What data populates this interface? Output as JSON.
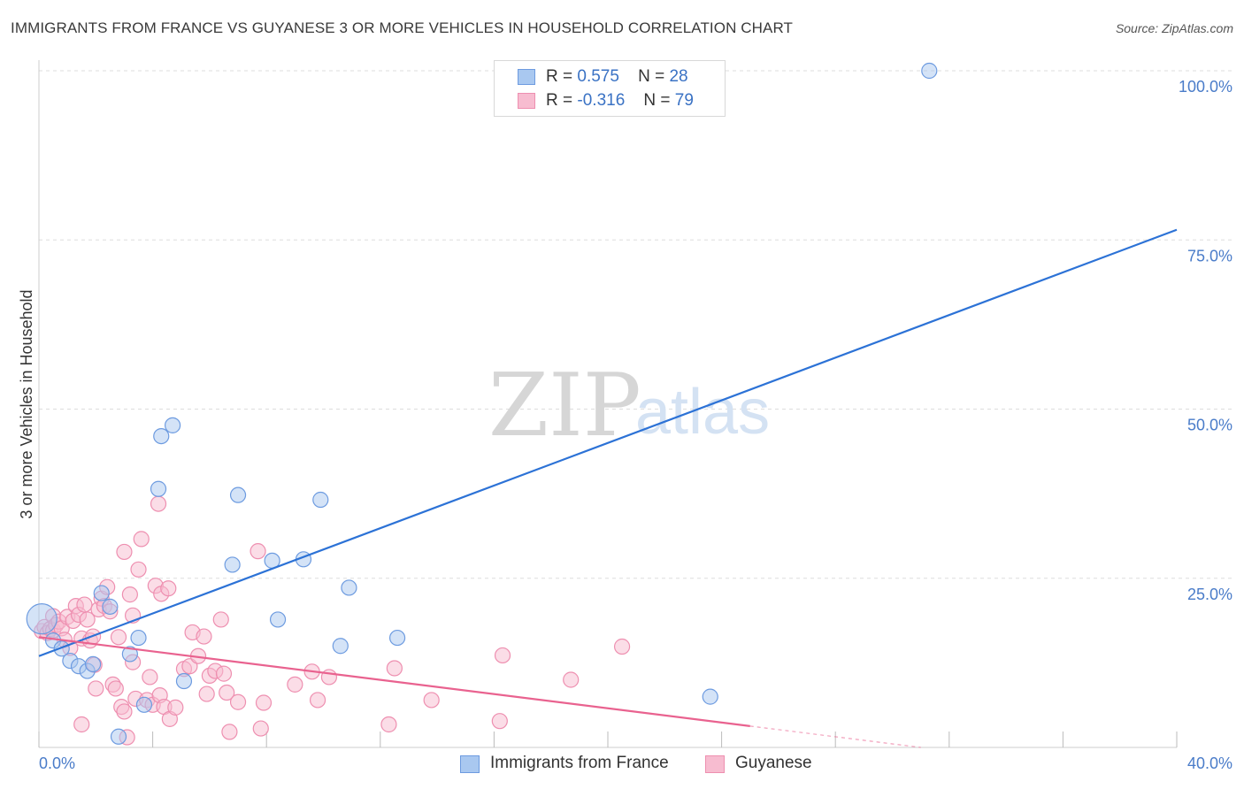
{
  "title": "IMMIGRANTS FROM FRANCE VS GUYANESE 3 OR MORE VEHICLES IN HOUSEHOLD CORRELATION CHART",
  "source": "Source: ZipAtlas.com",
  "watermark": {
    "zip": "ZIP",
    "atlas": "atlas"
  },
  "colors": {
    "france_fill": "#a9c8f0",
    "france_stroke": "#6d9be0",
    "france_line": "#2c72d6",
    "guyanese_fill": "#f7bcd0",
    "guyanese_stroke": "#ee8fb0",
    "guyanese_line": "#e9628f",
    "grid": "#dddddd",
    "tick_text": "#4a7cc9"
  },
  "legend": {
    "r_label": "R =",
    "n_label": "N =",
    "france": {
      "r": "0.575",
      "n": "28"
    },
    "guyanese": {
      "r": "-0.316",
      "n": "79"
    }
  },
  "chart_data": {
    "type": "scatter",
    "title": "IMMIGRANTS FROM FRANCE VS GUYANESE 3 OR MORE VEHICLES IN HOUSEHOLD CORRELATION CHART",
    "xlabel": "",
    "ylabel": "3 or more Vehicles in Household",
    "xlim": [
      0,
      40
    ],
    "ylim": [
      0,
      100
    ],
    "x_tick_labels": [
      "0.0%",
      "40.0%"
    ],
    "y_ticks": [
      25,
      50,
      75,
      100
    ],
    "y_tick_labels": [
      "25.0%",
      "50.0%",
      "75.0%",
      "100.0%"
    ],
    "grid": true,
    "legend_position": "top-center",
    "series": [
      {
        "name": "Immigrants from France",
        "r": 0.575,
        "n": 28,
        "trend": {
          "x": [
            0,
            40
          ],
          "y": [
            13.5,
            76.5
          ],
          "dashed_from": null
        },
        "points": [
          {
            "x": 0.1,
            "y": 19.0,
            "big": true
          },
          {
            "x": 0.5,
            "y": 15.8
          },
          {
            "x": 0.8,
            "y": 14.6
          },
          {
            "x": 1.1,
            "y": 12.8
          },
          {
            "x": 1.4,
            "y": 12.0
          },
          {
            "x": 1.7,
            "y": 11.3
          },
          {
            "x": 1.9,
            "y": 12.3
          },
          {
            "x": 2.2,
            "y": 22.8
          },
          {
            "x": 2.5,
            "y": 20.8
          },
          {
            "x": 2.8,
            "y": 1.6
          },
          {
            "x": 3.2,
            "y": 13.8
          },
          {
            "x": 3.5,
            "y": 16.2
          },
          {
            "x": 3.7,
            "y": 6.3
          },
          {
            "x": 4.2,
            "y": 38.2
          },
          {
            "x": 4.3,
            "y": 46.0
          },
          {
            "x": 4.7,
            "y": 47.6
          },
          {
            "x": 5.1,
            "y": 9.8
          },
          {
            "x": 6.8,
            "y": 27.0
          },
          {
            "x": 7.0,
            "y": 37.3
          },
          {
            "x": 8.2,
            "y": 27.6
          },
          {
            "x": 8.4,
            "y": 18.9
          },
          {
            "x": 9.3,
            "y": 27.8
          },
          {
            "x": 9.9,
            "y": 36.6
          },
          {
            "x": 10.6,
            "y": 15.0
          },
          {
            "x": 10.9,
            "y": 23.6
          },
          {
            "x": 12.6,
            "y": 16.2
          },
          {
            "x": 23.6,
            "y": 7.5
          },
          {
            "x": 31.3,
            "y": 100.0
          }
        ]
      },
      {
        "name": "Guyanese",
        "r": -0.316,
        "n": 79,
        "trend": {
          "x": [
            0,
            31.0
          ],
          "y": [
            16.3,
            0.0
          ],
          "dashed_from": 25.0
        },
        "points": [
          {
            "x": 0.1,
            "y": 17.2
          },
          {
            "x": 0.2,
            "y": 17.8
          },
          {
            "x": 0.3,
            "y": 16.9
          },
          {
            "x": 0.4,
            "y": 17.5
          },
          {
            "x": 0.5,
            "y": 19.4
          },
          {
            "x": 0.5,
            "y": 17.3
          },
          {
            "x": 0.6,
            "y": 18.1
          },
          {
            "x": 0.7,
            "y": 18.6
          },
          {
            "x": 0.8,
            "y": 17.6
          },
          {
            "x": 0.9,
            "y": 15.9
          },
          {
            "x": 1.0,
            "y": 19.3
          },
          {
            "x": 1.1,
            "y": 14.7
          },
          {
            "x": 1.2,
            "y": 18.7
          },
          {
            "x": 1.3,
            "y": 20.9
          },
          {
            "x": 1.4,
            "y": 19.6
          },
          {
            "x": 1.5,
            "y": 16.1
          },
          {
            "x": 1.5,
            "y": 3.4
          },
          {
            "x": 1.6,
            "y": 21.1
          },
          {
            "x": 1.7,
            "y": 18.9
          },
          {
            "x": 1.8,
            "y": 15.8
          },
          {
            "x": 1.9,
            "y": 16.4
          },
          {
            "x": 1.95,
            "y": 12.2
          },
          {
            "x": 2.0,
            "y": 8.7
          },
          {
            "x": 2.1,
            "y": 20.4
          },
          {
            "x": 2.2,
            "y": 22.0
          },
          {
            "x": 2.3,
            "y": 20.9
          },
          {
            "x": 2.4,
            "y": 23.7
          },
          {
            "x": 2.5,
            "y": 20.1
          },
          {
            "x": 2.6,
            "y": 9.3
          },
          {
            "x": 2.7,
            "y": 8.7
          },
          {
            "x": 2.8,
            "y": 16.3
          },
          {
            "x": 2.9,
            "y": 6.0
          },
          {
            "x": 3.0,
            "y": 5.3
          },
          {
            "x": 3.0,
            "y": 28.9
          },
          {
            "x": 3.1,
            "y": 1.5
          },
          {
            "x": 3.2,
            "y": 22.6
          },
          {
            "x": 3.3,
            "y": 19.5
          },
          {
            "x": 3.3,
            "y": 12.6
          },
          {
            "x": 3.4,
            "y": 7.2
          },
          {
            "x": 3.5,
            "y": 26.3
          },
          {
            "x": 3.6,
            "y": 30.8
          },
          {
            "x": 3.8,
            "y": 7.0
          },
          {
            "x": 3.9,
            "y": 10.4
          },
          {
            "x": 4.0,
            "y": 6.3
          },
          {
            "x": 4.1,
            "y": 23.9
          },
          {
            "x": 4.2,
            "y": 36.0
          },
          {
            "x": 4.25,
            "y": 7.7
          },
          {
            "x": 4.3,
            "y": 22.7
          },
          {
            "x": 4.4,
            "y": 6.0
          },
          {
            "x": 4.55,
            "y": 23.5
          },
          {
            "x": 4.6,
            "y": 4.2
          },
          {
            "x": 4.8,
            "y": 5.9
          },
          {
            "x": 5.1,
            "y": 11.6
          },
          {
            "x": 5.3,
            "y": 12.0
          },
          {
            "x": 5.4,
            "y": 17.0
          },
          {
            "x": 5.6,
            "y": 13.5
          },
          {
            "x": 5.8,
            "y": 16.4
          },
          {
            "x": 5.9,
            "y": 7.9
          },
          {
            "x": 6.0,
            "y": 10.6
          },
          {
            "x": 6.2,
            "y": 11.3
          },
          {
            "x": 6.4,
            "y": 18.9
          },
          {
            "x": 6.5,
            "y": 10.9
          },
          {
            "x": 6.6,
            "y": 8.1
          },
          {
            "x": 6.7,
            "y": 2.3
          },
          {
            "x": 7.0,
            "y": 6.7
          },
          {
            "x": 7.7,
            "y": 29.0
          },
          {
            "x": 7.8,
            "y": 2.8
          },
          {
            "x": 7.9,
            "y": 6.6
          },
          {
            "x": 9.0,
            "y": 9.3
          },
          {
            "x": 9.6,
            "y": 11.2
          },
          {
            "x": 9.8,
            "y": 7.0
          },
          {
            "x": 10.2,
            "y": 10.4
          },
          {
            "x": 12.3,
            "y": 3.4
          },
          {
            "x": 12.5,
            "y": 11.7
          },
          {
            "x": 13.8,
            "y": 7.0
          },
          {
            "x": 16.2,
            "y": 3.9
          },
          {
            "x": 16.3,
            "y": 13.6
          },
          {
            "x": 18.7,
            "y": 10.0
          },
          {
            "x": 20.5,
            "y": 14.9
          }
        ]
      }
    ]
  }
}
